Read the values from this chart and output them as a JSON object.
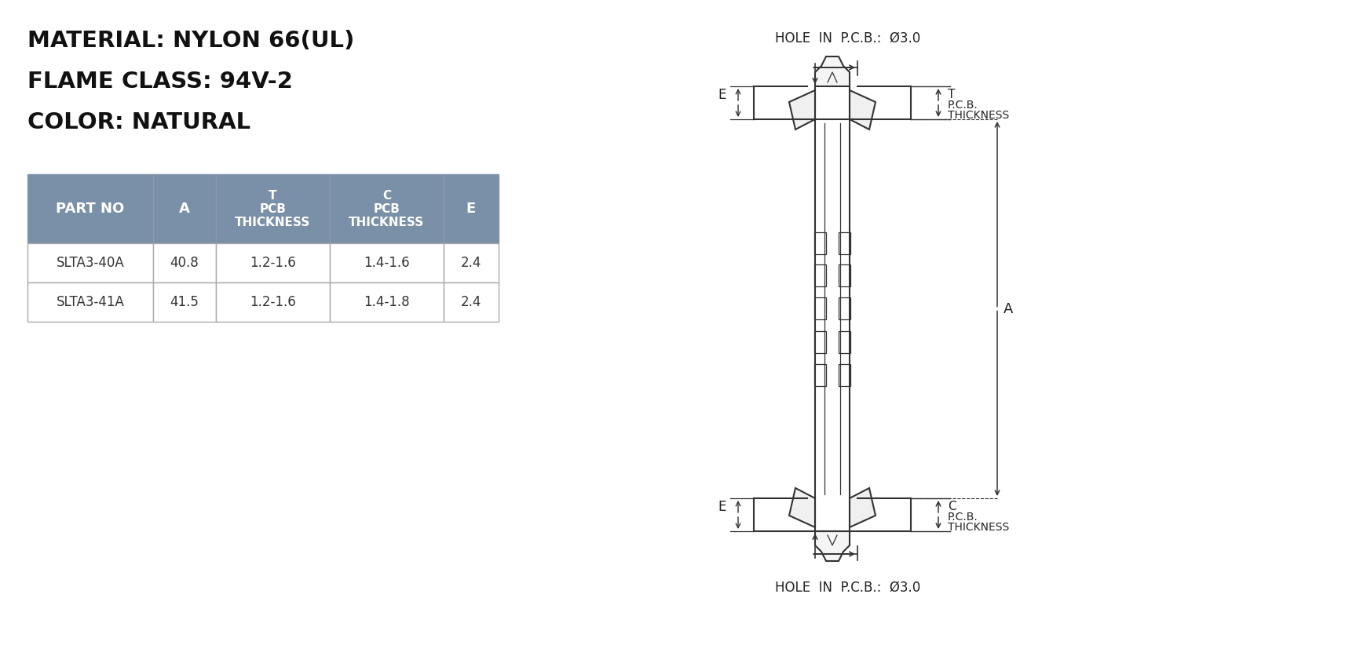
{
  "bg_color": "#ffffff",
  "title_lines": [
    "MATERIAL: NYLON 66(UL)",
    "FLAME CLASS: 94V-2",
    "COLOR: NATURAL"
  ],
  "title_fontsize": 21,
  "table_header": [
    "PART NO",
    "A",
    "T\nPCB\nTHICKNESS",
    "C\nPCB\nTHICKNESS",
    "E"
  ],
  "table_rows": [
    [
      "SLTA3-40A",
      "40.8",
      "1.2-1.6",
      "1.4-1.6",
      "2.4"
    ],
    [
      "SLTA3-41A",
      "41.5",
      "1.2-1.6",
      "1.4-1.8",
      "2.4"
    ]
  ],
  "table_header_bg": "#7a8fa8",
  "table_row_bg": "#ffffff",
  "table_text_color_header": "#ffffff",
  "table_text_color_row": "#333333",
  "hole_label": "HOLE  IN  P.C.B.:  Ø3.0",
  "drawing_line_color": "#333333",
  "label_font_color": "#333333"
}
